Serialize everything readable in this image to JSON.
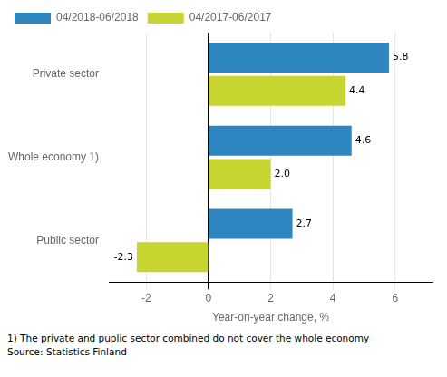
{
  "chart_data": {
    "type": "bar",
    "orientation": "horizontal",
    "categories": [
      "Public sector",
      "Whole economy 1)",
      "Private sector"
    ],
    "series": [
      {
        "name": "04/2018-06/2018",
        "color": "#2E86C1",
        "values": [
          2.7,
          4.6,
          5.8
        ],
        "value_labels": [
          "2.7",
          "4.6",
          "5.8"
        ]
      },
      {
        "name": "04/2017-06/2017",
        "color": "#C8D430",
        "values": [
          -2.3,
          2.0,
          4.4
        ],
        "value_labels": [
          "-2.3",
          "2.0",
          "4.4"
        ]
      }
    ],
    "xlabel": "Year-on-year change, %",
    "xlim": [
      -3.2,
      7.2
    ],
    "xticks": [
      -2,
      0,
      2,
      4,
      6
    ],
    "grid": true,
    "legend": "upper left",
    "data_labels": true,
    "annotations": [
      "1) The private and puplic sector combined do not cover the whole economy",
      "Source: Statistics Finland"
    ]
  }
}
